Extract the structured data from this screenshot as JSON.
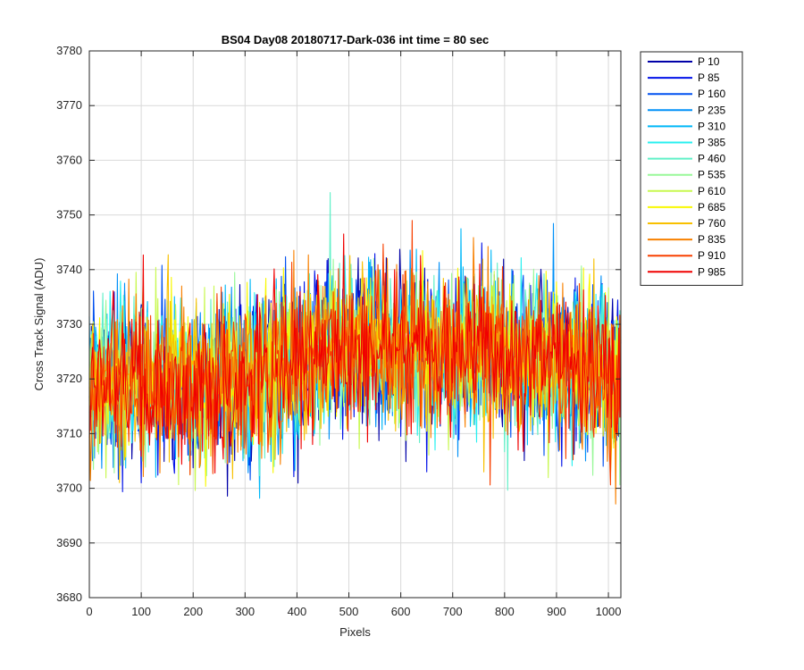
{
  "chart_data": {
    "type": "line",
    "title": "BS04 Day08 20180717-Dark-036 int time = 80 sec",
    "xlabel": "Pixels",
    "ylabel": "Cross Track Signal (ADU)",
    "xlim": [
      0,
      1024
    ],
    "ylim": [
      3680,
      3780
    ],
    "xticks": [
      0,
      100,
      200,
      300,
      400,
      500,
      600,
      700,
      800,
      900,
      1000
    ],
    "yticks": [
      3680,
      3690,
      3700,
      3710,
      3720,
      3730,
      3740,
      3750,
      3760,
      3770,
      3780
    ],
    "grid": true,
    "legend_position": "outside-top-right",
    "baseline_profile": {
      "x": [
        0,
        100,
        200,
        300,
        400,
        500,
        600,
        700,
        800,
        900,
        1024
      ],
      "y": [
        3719,
        3720,
        3719,
        3720,
        3723,
        3726,
        3726,
        3725,
        3725,
        3723,
        3720
      ]
    },
    "noise_peak_to_peak": 30,
    "series": [
      {
        "name": "P 10",
        "color": "#0000a8"
      },
      {
        "name": "P 85",
        "color": "#0010e8"
      },
      {
        "name": "P 160",
        "color": "#0050f0"
      },
      {
        "name": "P 235",
        "color": "#0090f8"
      },
      {
        "name": "P 310",
        "color": "#00b8f8"
      },
      {
        "name": "P 385",
        "color": "#28f0f0"
      },
      {
        "name": "P 460",
        "color": "#60f0c8"
      },
      {
        "name": "P 535",
        "color": "#98f898"
      },
      {
        "name": "P 610",
        "color": "#c8f850"
      },
      {
        "name": "P 685",
        "color": "#f8f800"
      },
      {
        "name": "P 760",
        "color": "#f8c000"
      },
      {
        "name": "P 835",
        "color": "#f88000"
      },
      {
        "name": "P 910",
        "color": "#f84000"
      },
      {
        "name": "P 985",
        "color": "#f00000"
      }
    ]
  }
}
